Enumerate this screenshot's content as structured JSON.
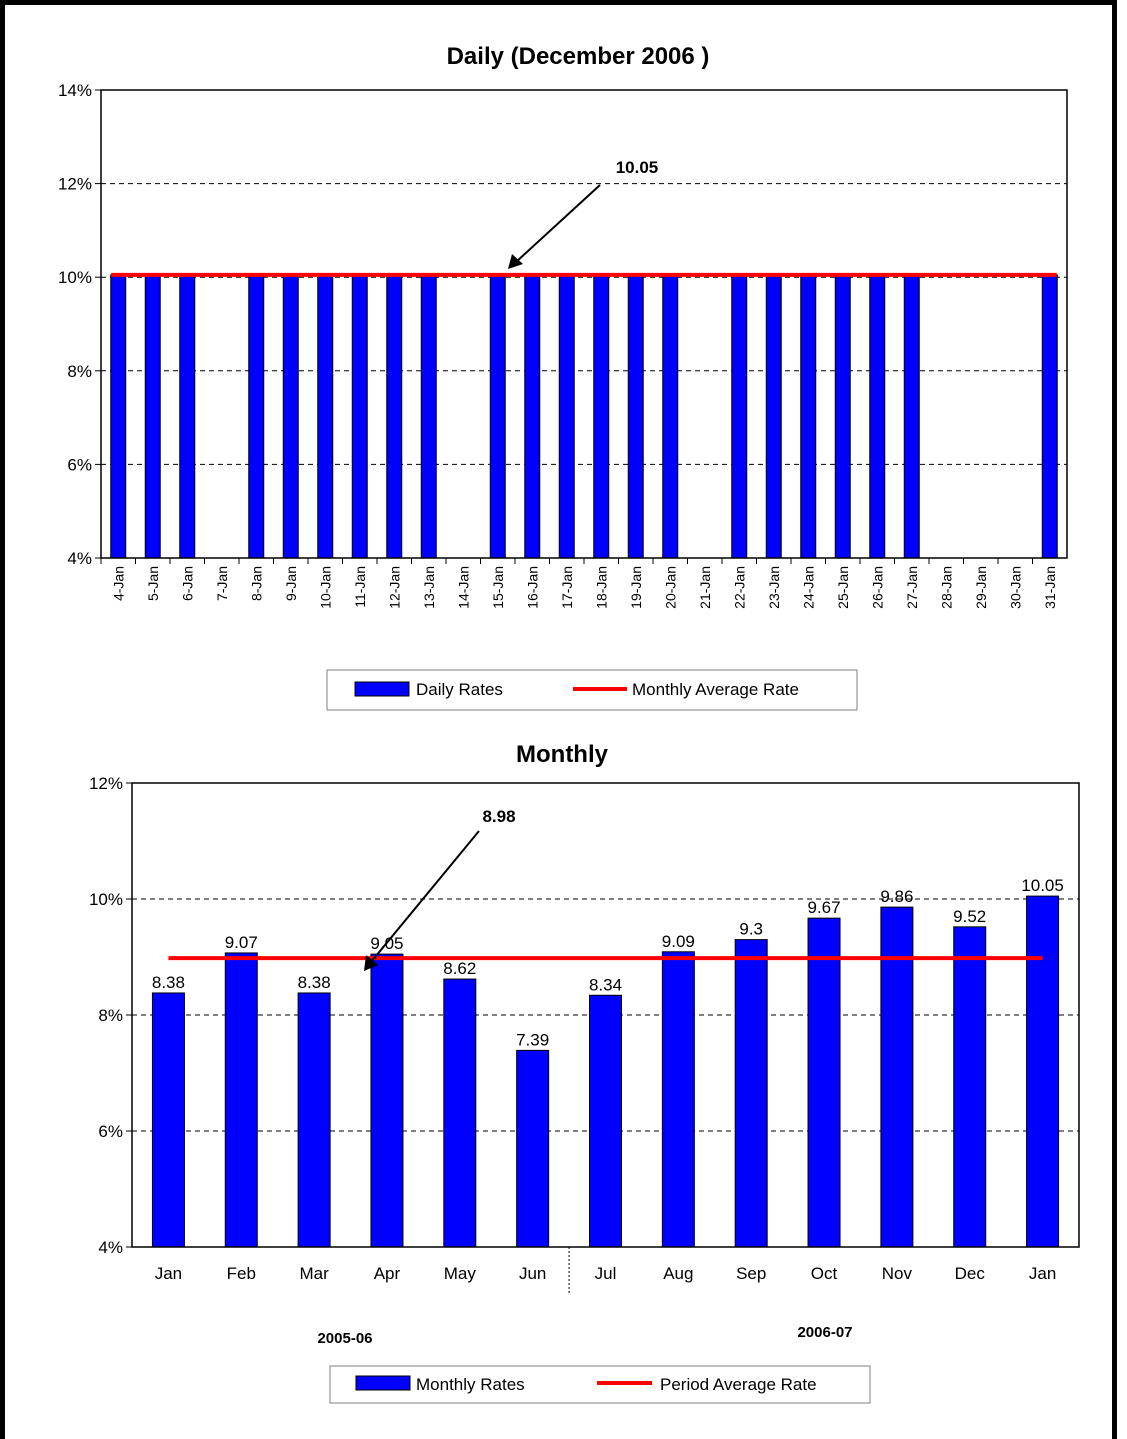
{
  "chart_data": [
    {
      "type": "bar",
      "title": "Daily   (December  2006 )",
      "ylim": [
        0.04,
        0.14
      ],
      "yticks": [
        "4%",
        "6%",
        "8%",
        "10%",
        "12%",
        "14%"
      ],
      "grid": true,
      "categories": [
        "4-Jan",
        "5-Jan",
        "6-Jan",
        "7-Jan",
        "8-Jan",
        "9-Jan",
        "10-Jan",
        "11-Jan",
        "12-Jan",
        "13-Jan",
        "14-Jan",
        "15-Jan",
        "16-Jan",
        "17-Jan",
        "18-Jan",
        "19-Jan",
        "20-Jan",
        "21-Jan",
        "22-Jan",
        "23-Jan",
        "24-Jan",
        "25-Jan",
        "26-Jan",
        "27-Jan",
        "28-Jan",
        "29-Jan",
        "30-Jan",
        "31-Jan"
      ],
      "series": [
        {
          "name": "Daily Rates",
          "type": "bar",
          "color": "#0000ff",
          "values": [
            0.1005,
            0.1005,
            0.1005,
            null,
            0.1005,
            0.1005,
            0.1005,
            0.1005,
            0.1005,
            0.1005,
            null,
            0.1005,
            0.1005,
            0.1005,
            0.1005,
            0.1005,
            0.1005,
            null,
            0.1005,
            0.1005,
            0.1005,
            0.1005,
            0.1005,
            0.1005,
            null,
            null,
            null,
            0.1005
          ]
        },
        {
          "name": "Monthly Average Rate",
          "type": "line",
          "color": "#ff0000",
          "value": 0.1005
        }
      ],
      "annotation": {
        "text": "10.05"
      },
      "legend": "bottom"
    },
    {
      "type": "bar",
      "title": "Monthly",
      "ylim": [
        0.04,
        0.12
      ],
      "yticks": [
        "4%",
        "6%",
        "8%",
        "10%",
        "12%"
      ],
      "grid": true,
      "categories": [
        "Jan",
        "Feb",
        "Mar",
        "Apr",
        "May",
        "Jun",
        "Jul",
        "Aug",
        "Sep",
        "Oct",
        "Nov",
        "Dec",
        "Jan"
      ],
      "groups": [
        {
          "label": "2005-06"
        },
        {
          "label": "2006-07"
        }
      ],
      "series": [
        {
          "name": "Monthly Rates",
          "type": "bar",
          "color": "#0000ff",
          "values": [
            8.38,
            9.07,
            8.38,
            9.05,
            8.62,
            7.39,
            8.34,
            9.09,
            9.3,
            9.67,
            9.86,
            9.52,
            10.05
          ],
          "labels": [
            "8.38",
            "9.07",
            "8.38",
            "9.05",
            "8.62",
            "7.39",
            "8.34",
            "9.09",
            "9.3",
            "9.67",
            "9.86",
            "9.52",
            "10.05"
          ]
        },
        {
          "name": "Period Average Rate",
          "type": "line",
          "color": "#ff0000",
          "value": 8.98
        }
      ],
      "annotation": {
        "text": "8.98"
      },
      "legend": "bottom"
    }
  ]
}
